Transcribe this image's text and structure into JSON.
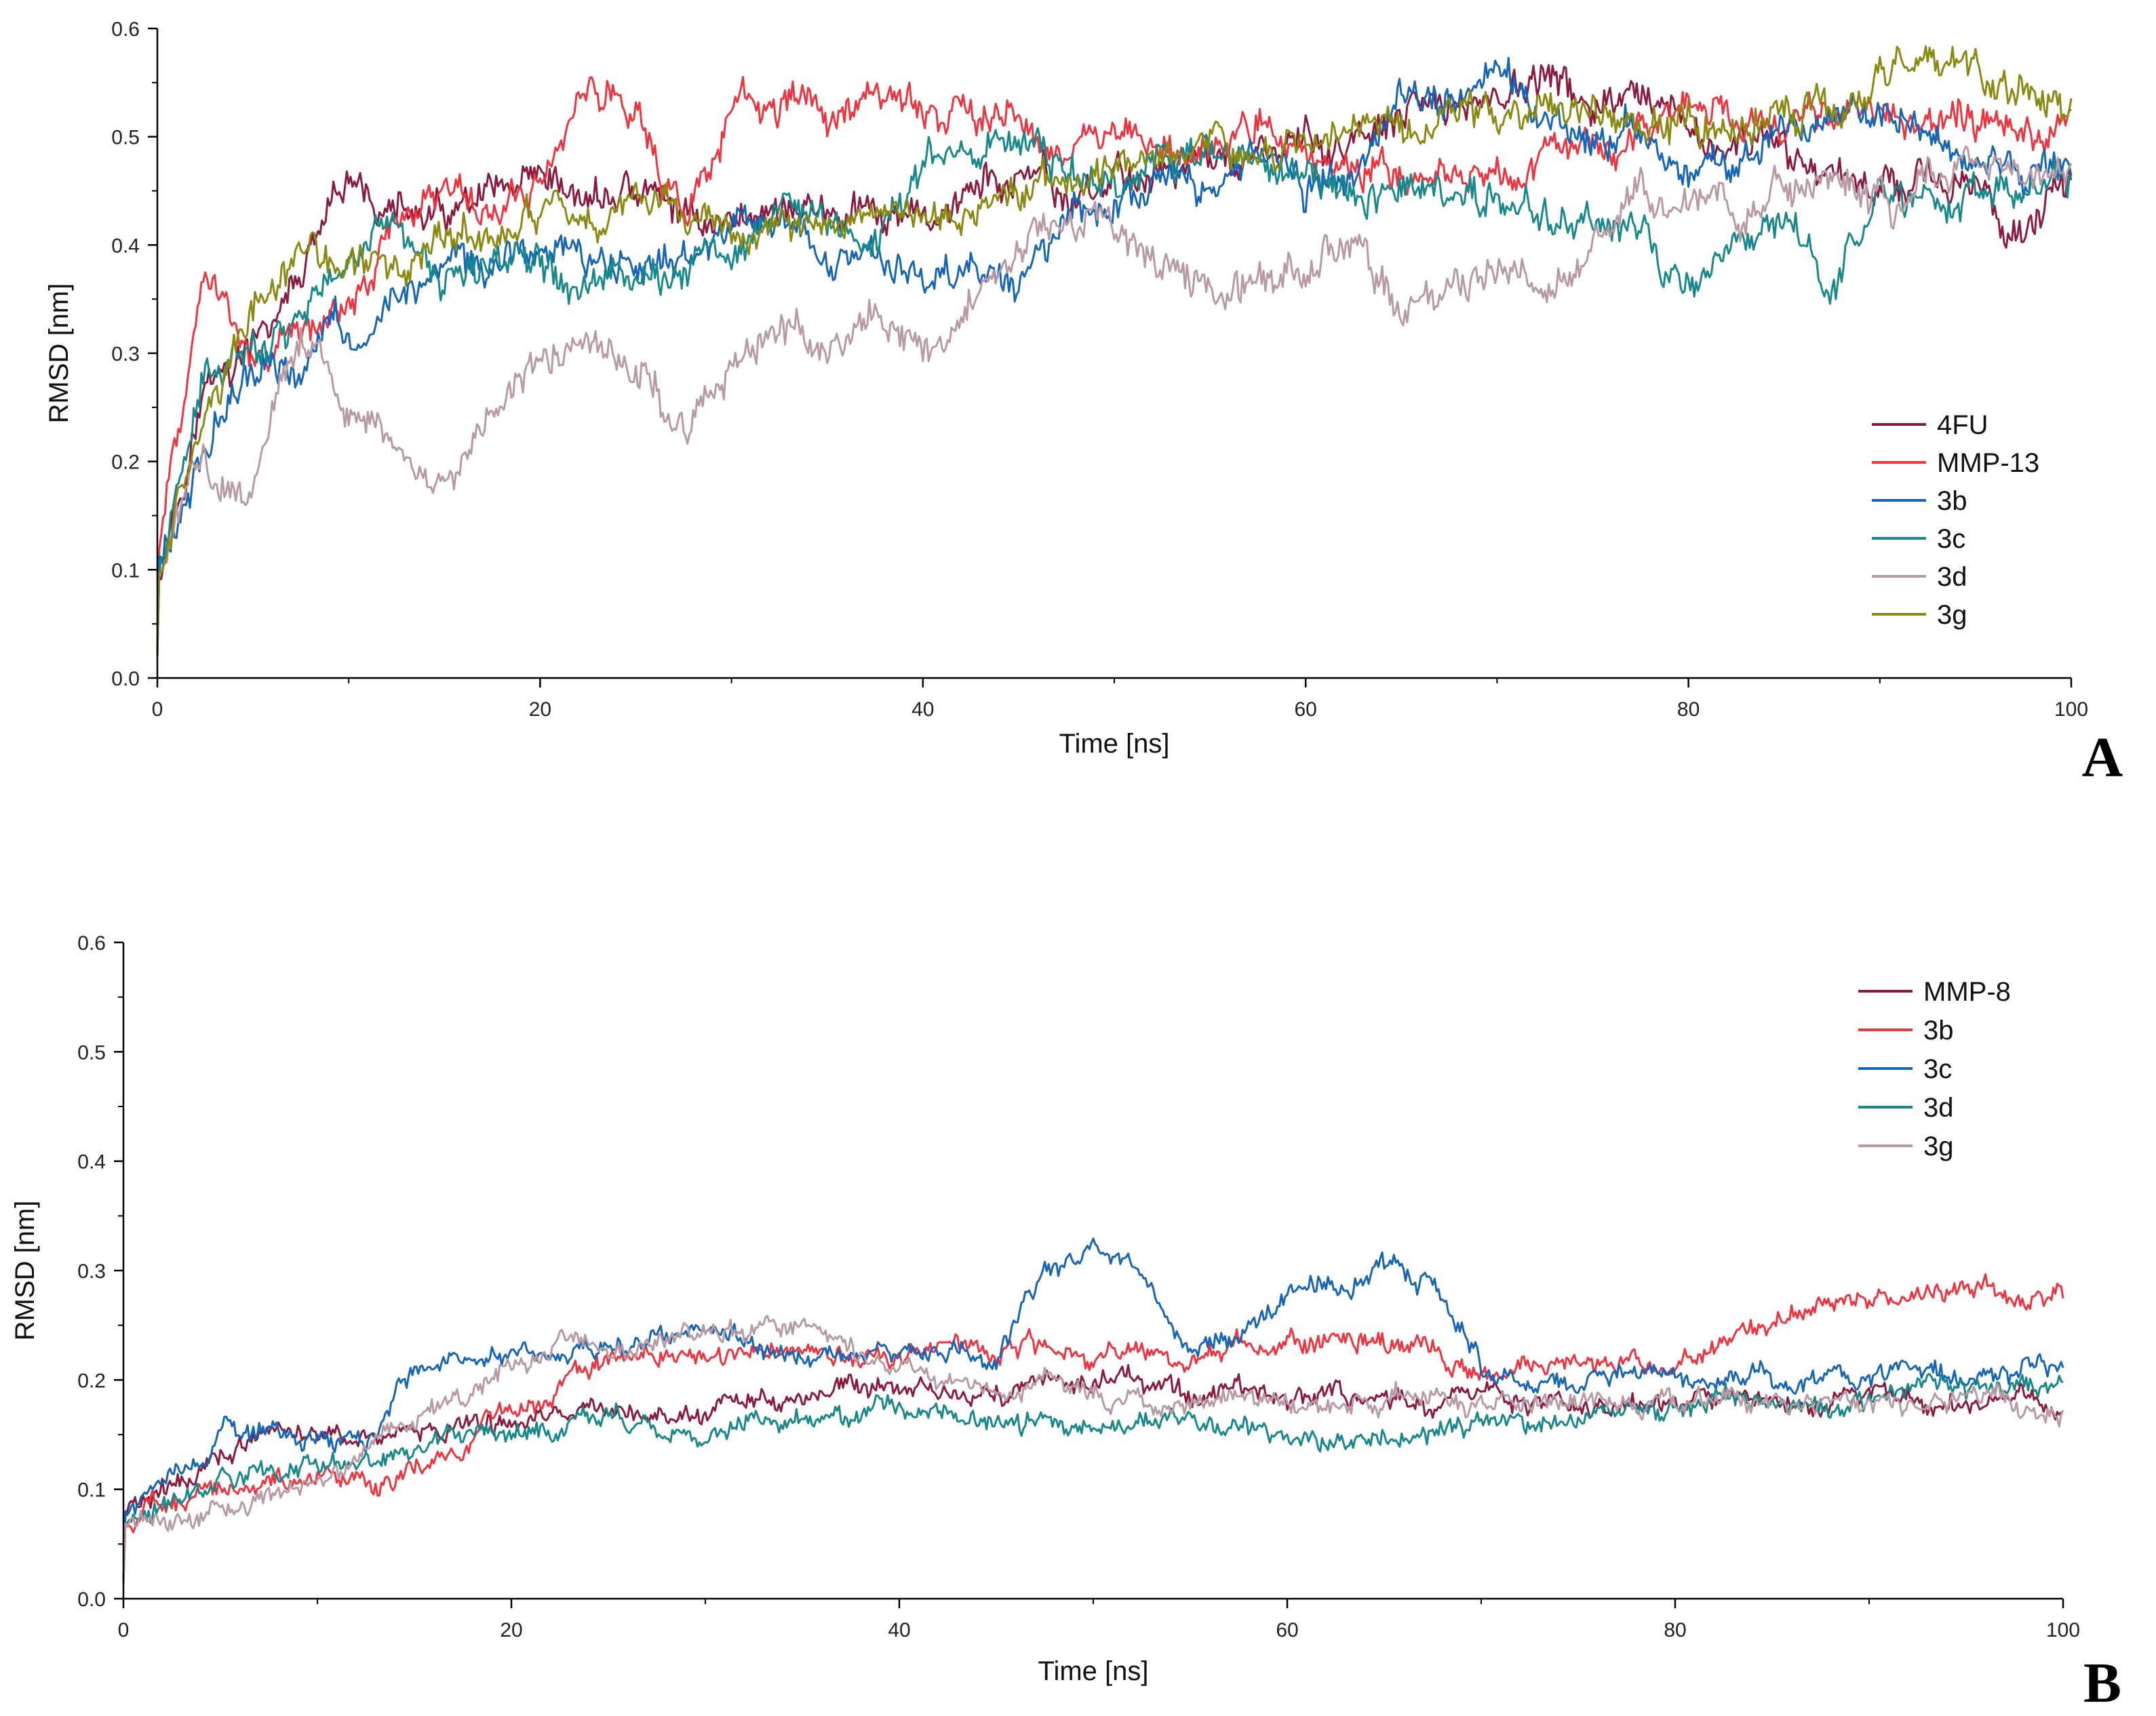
{
  "chart_data": [
    {
      "panel": "A",
      "type": "line",
      "xlabel": "Time [ns]",
      "ylabel": "RMSD [nm]",
      "xlim": [
        0,
        100
      ],
      "ylim": [
        0,
        0.6
      ],
      "xticks": [
        0,
        20,
        40,
        60,
        80,
        100
      ],
      "yticks": [
        0.0,
        0.1,
        0.2,
        0.3,
        0.4,
        0.5,
        0.6
      ],
      "legend_position": "right",
      "x": [
        0,
        2.5,
        5,
        7.5,
        10,
        12.5,
        15,
        17.5,
        20,
        22.5,
        25,
        27.5,
        30,
        32.5,
        35,
        37.5,
        40,
        42.5,
        45,
        47.5,
        50,
        52.5,
        55,
        57.5,
        60,
        62.5,
        65,
        67.5,
        70,
        72.5,
        75,
        77.5,
        80,
        82.5,
        85,
        87.5,
        90,
        92.5,
        95,
        97.5,
        100
      ],
      "series": [
        {
          "name": "4FU",
          "color": "#8b1a3c",
          "values": [
            0.1,
            0.27,
            0.3,
            0.37,
            0.45,
            0.43,
            0.42,
            0.44,
            0.44,
            0.44,
            0.45,
            0.43,
            0.42,
            0.44,
            0.43,
            0.42,
            0.42,
            0.45,
            0.46,
            0.44,
            0.46,
            0.47,
            0.48,
            0.48,
            0.49,
            0.49,
            0.51,
            0.53,
            0.54,
            0.55,
            0.53,
            0.52,
            0.5,
            0.49,
            0.48,
            0.47,
            0.46,
            0.47,
            0.44,
            0.42,
            0.45
          ]
        },
        {
          "name": "MMP-13",
          "color": "#f2333e",
          "values": [
            0.12,
            0.38,
            0.29,
            0.32,
            0.35,
            0.42,
            0.46,
            0.43,
            0.46,
            0.55,
            0.53,
            0.42,
            0.52,
            0.53,
            0.52,
            0.54,
            0.53,
            0.52,
            0.52,
            0.5,
            0.49,
            0.48,
            0.48,
            0.5,
            0.48,
            0.47,
            0.48,
            0.47,
            0.47,
            0.48,
            0.5,
            0.51,
            0.52,
            0.51,
            0.51,
            0.5,
            0.51,
            0.52,
            0.51,
            0.5,
            0.51
          ]
        },
        {
          "name": "3b",
          "color": "#1565b8",
          "values": [
            0.1,
            0.22,
            0.28,
            0.3,
            0.33,
            0.35,
            0.38,
            0.37,
            0.4,
            0.39,
            0.38,
            0.39,
            0.41,
            0.42,
            0.4,
            0.38,
            0.37,
            0.38,
            0.36,
            0.43,
            0.45,
            0.47,
            0.46,
            0.49,
            0.44,
            0.48,
            0.54,
            0.53,
            0.55,
            0.5,
            0.5,
            0.51,
            0.48,
            0.47,
            0.5,
            0.52,
            0.53,
            0.5,
            0.48,
            0.46,
            0.48
          ]
        },
        {
          "name": "3c",
          "color": "#17898a",
          "values": [
            0.1,
            0.27,
            0.3,
            0.35,
            0.38,
            0.43,
            0.36,
            0.38,
            0.4,
            0.37,
            0.38,
            0.37,
            0.4,
            0.43,
            0.42,
            0.4,
            0.48,
            0.49,
            0.5,
            0.47,
            0.46,
            0.48,
            0.48,
            0.47,
            0.46,
            0.45,
            0.46,
            0.44,
            0.44,
            0.43,
            0.42,
            0.41,
            0.35,
            0.4,
            0.43,
            0.36,
            0.45,
            0.44,
            0.45,
            0.44,
            0.46
          ]
        },
        {
          "name": "3d",
          "color": "#b89aa5",
          "values": [
            0.1,
            0.2,
            0.19,
            0.31,
            0.25,
            0.21,
            0.18,
            0.25,
            0.3,
            0.31,
            0.29,
            0.22,
            0.29,
            0.33,
            0.29,
            0.34,
            0.3,
            0.34,
            0.4,
            0.44,
            0.42,
            0.38,
            0.36,
            0.36,
            0.38,
            0.42,
            0.33,
            0.37,
            0.4,
            0.34,
            0.38,
            0.45,
            0.44,
            0.42,
            0.45,
            0.46,
            0.44,
            0.46,
            0.48,
            0.47,
            0.47
          ]
        },
        {
          "name": "3g",
          "color": "#8a8a12",
          "values": [
            0.1,
            0.23,
            0.35,
            0.4,
            0.38,
            0.37,
            0.4,
            0.41,
            0.43,
            0.43,
            0.44,
            0.43,
            0.42,
            0.41,
            0.41,
            0.42,
            0.43,
            0.44,
            0.44,
            0.46,
            0.47,
            0.48,
            0.49,
            0.48,
            0.49,
            0.5,
            0.5,
            0.51,
            0.53,
            0.53,
            0.53,
            0.52,
            0.52,
            0.51,
            0.52,
            0.53,
            0.55,
            0.56,
            0.57,
            0.53,
            0.52
          ]
        }
      ]
    },
    {
      "panel": "B",
      "type": "line",
      "xlabel": "Time [ns]",
      "ylabel": "RMSD [nm]",
      "xlim": [
        0,
        100
      ],
      "ylim": [
        0,
        0.6
      ],
      "xticks": [
        0,
        20,
        40,
        60,
        80,
        100
      ],
      "yticks": [
        0.0,
        0.1,
        0.2,
        0.3,
        0.4,
        0.5,
        0.6
      ],
      "legend_position": "top-right",
      "x": [
        0,
        2.5,
        5,
        7.5,
        10,
        12.5,
        15,
        17.5,
        20,
        22.5,
        25,
        27.5,
        30,
        32.5,
        35,
        37.5,
        40,
        42.5,
        45,
        47.5,
        50,
        52.5,
        55,
        57.5,
        60,
        62.5,
        65,
        67.5,
        70,
        72.5,
        75,
        77.5,
        80,
        82.5,
        85,
        87.5,
        90,
        92.5,
        95,
        97.5,
        100
      ],
      "series": [
        {
          "name": "MMP-8",
          "color": "#8b1a3c",
          "values": [
            0.08,
            0.1,
            0.13,
            0.15,
            0.15,
            0.15,
            0.15,
            0.16,
            0.16,
            0.17,
            0.17,
            0.17,
            0.17,
            0.18,
            0.18,
            0.19,
            0.19,
            0.19,
            0.19,
            0.19,
            0.2,
            0.2,
            0.19,
            0.19,
            0.18,
            0.19,
            0.18,
            0.18,
            0.19,
            0.18,
            0.18,
            0.18,
            0.18,
            0.18,
            0.18,
            0.18,
            0.19,
            0.18,
            0.18,
            0.18,
            0.18
          ]
        },
        {
          "name": "3b",
          "color": "#f2333e",
          "values": [
            0.07,
            0.09,
            0.1,
            0.11,
            0.11,
            0.1,
            0.12,
            0.14,
            0.17,
            0.2,
            0.22,
            0.22,
            0.22,
            0.22,
            0.23,
            0.22,
            0.22,
            0.23,
            0.23,
            0.23,
            0.22,
            0.23,
            0.22,
            0.23,
            0.23,
            0.24,
            0.24,
            0.24,
            0.2,
            0.21,
            0.22,
            0.22,
            0.22,
            0.23,
            0.25,
            0.28,
            0.27,
            0.28,
            0.28,
            0.28,
            0.27
          ]
        },
        {
          "name": "3c",
          "color": "#1565b8",
          "values": [
            0.08,
            0.12,
            0.15,
            0.15,
            0.15,
            0.15,
            0.21,
            0.22,
            0.22,
            0.22,
            0.23,
            0.24,
            0.24,
            0.23,
            0.22,
            0.22,
            0.22,
            0.23,
            0.21,
            0.3,
            0.32,
            0.3,
            0.22,
            0.24,
            0.28,
            0.28,
            0.3,
            0.29,
            0.21,
            0.2,
            0.2,
            0.21,
            0.21,
            0.2,
            0.2,
            0.2,
            0.2,
            0.21,
            0.21,
            0.21,
            0.21
          ]
        },
        {
          "name": "3d",
          "color": "#17898a",
          "values": [
            0.07,
            0.09,
            0.11,
            0.12,
            0.12,
            0.13,
            0.14,
            0.15,
            0.15,
            0.15,
            0.16,
            0.15,
            0.15,
            0.16,
            0.16,
            0.17,
            0.18,
            0.17,
            0.16,
            0.16,
            0.16,
            0.16,
            0.16,
            0.15,
            0.15,
            0.15,
            0.15,
            0.15,
            0.16,
            0.16,
            0.16,
            0.17,
            0.17,
            0.18,
            0.18,
            0.18,
            0.18,
            0.19,
            0.19,
            0.19,
            0.19
          ]
        },
        {
          "name": "3g",
          "color": "#b89aa5",
          "values": [
            0.07,
            0.07,
            0.08,
            0.09,
            0.1,
            0.14,
            0.16,
            0.19,
            0.22,
            0.23,
            0.23,
            0.23,
            0.24,
            0.25,
            0.25,
            0.22,
            0.21,
            0.2,
            0.19,
            0.19,
            0.19,
            0.18,
            0.18,
            0.18,
            0.18,
            0.18,
            0.18,
            0.18,
            0.18,
            0.18,
            0.18,
            0.18,
            0.18,
            0.18,
            0.18,
            0.18,
            0.18,
            0.18,
            0.18,
            0.18,
            0.17
          ]
        }
      ]
    }
  ],
  "panel_labels": [
    "A",
    "B"
  ]
}
